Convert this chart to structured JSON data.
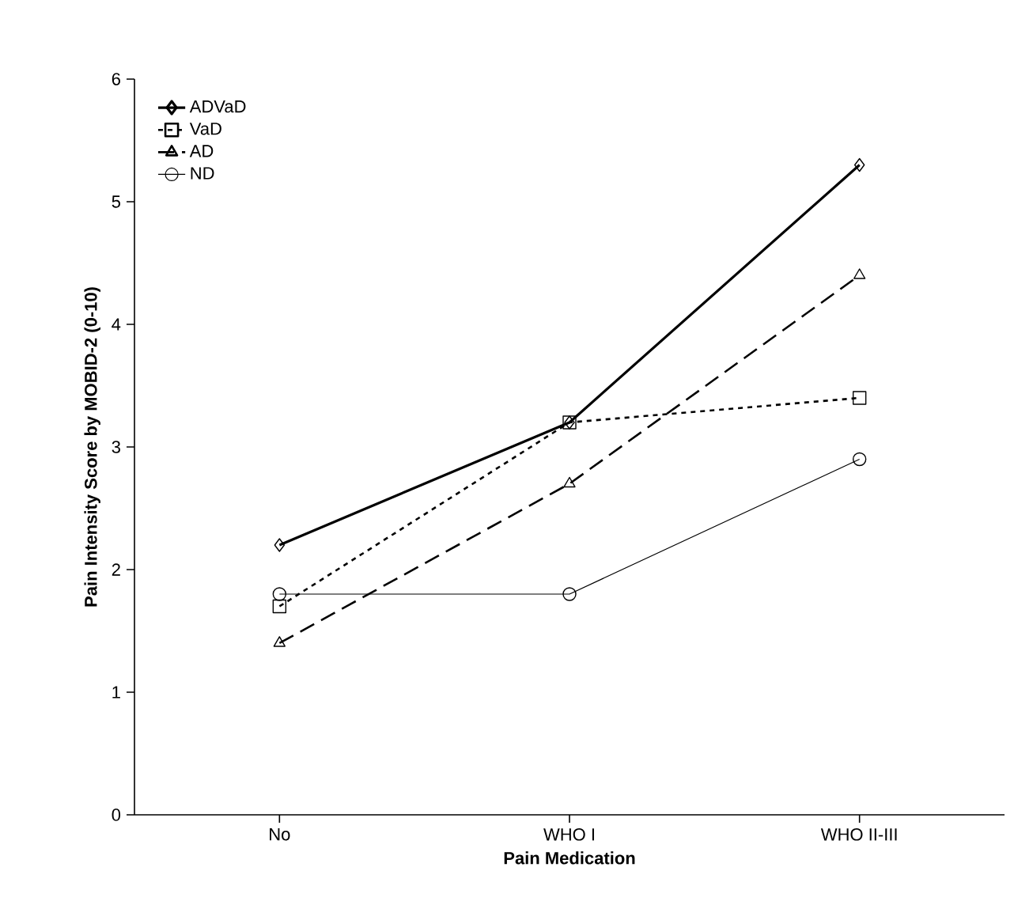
{
  "chart_data": {
    "type": "line",
    "xlabel": "Pain Medication",
    "ylabel": "Pain Intensity Score by MOBID-2 (0-10)",
    "categories": [
      "No",
      "WHO I",
      "WHO II-III"
    ],
    "series": [
      {
        "name": "ADVaD",
        "color": "#000000",
        "values": [
          2.2,
          3.2,
          5.3
        ],
        "marker": "diamond",
        "line_style": "solid"
      },
      {
        "name": "VaD",
        "color": "#000000",
        "values": [
          1.7,
          3.2,
          3.4
        ],
        "marker": "square",
        "line_style": "dotted"
      },
      {
        "name": "AD",
        "color": "#000000",
        "values": [
          1.4,
          2.7,
          4.4
        ],
        "marker": "triangle",
        "line_style": "dashed"
      },
      {
        "name": "ND",
        "color": "#000000",
        "values": [
          1.8,
          1.8,
          2.9
        ],
        "marker": "circle",
        "line_style": "solid"
      }
    ],
    "ylim": [
      0,
      6
    ],
    "yticks": [
      0,
      1,
      2,
      3,
      4,
      5,
      6
    ],
    "grid": false,
    "legend": "top left"
  }
}
